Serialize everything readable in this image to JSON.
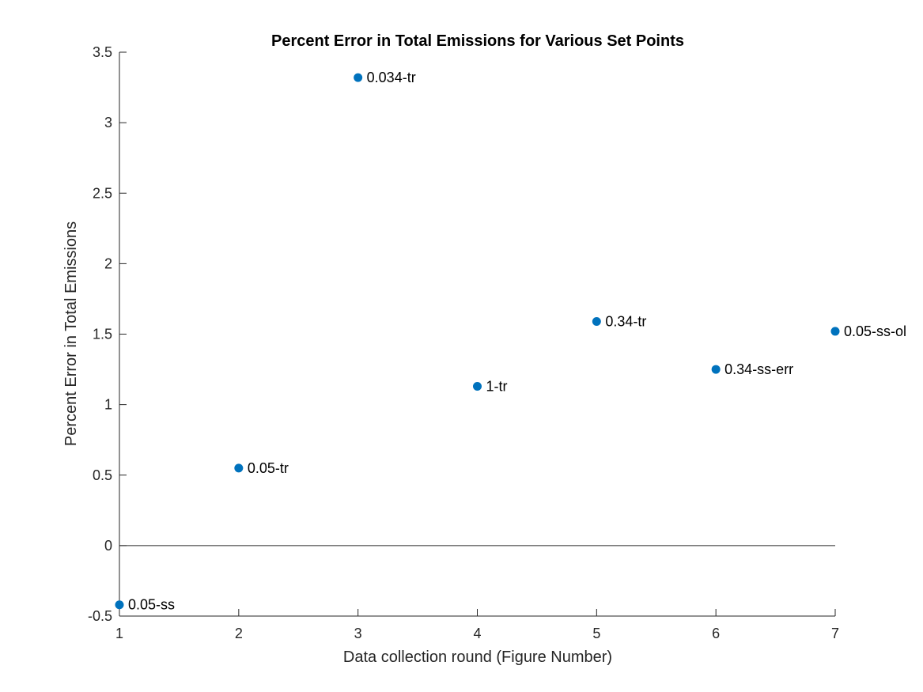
{
  "chart_data": {
    "type": "scatter",
    "title": "Percent Error in Total Emissions for Various Set Points",
    "xlabel": "Data collection round (Figure Number)",
    "ylabel": "Percent Error in Total Emissions",
    "xlim": [
      1,
      7
    ],
    "ylim": [
      -0.5,
      3.5
    ],
    "xticks": [
      "1",
      "2",
      "3",
      "4",
      "5",
      "6",
      "7"
    ],
    "yticks": [
      "-0.5",
      "0",
      "0.5",
      "1",
      "1.5",
      "2",
      "2.5",
      "3",
      "3.5"
    ],
    "grid": false,
    "zero_line": true,
    "marker_color": "#0072BD",
    "points": [
      {
        "x": 1,
        "y": -0.42,
        "label": "0.05-ss"
      },
      {
        "x": 2,
        "y": 0.55,
        "label": "0.05-tr"
      },
      {
        "x": 3,
        "y": 3.32,
        "label": "0.034-tr"
      },
      {
        "x": 4,
        "y": 1.13,
        "label": "1-tr"
      },
      {
        "x": 5,
        "y": 1.59,
        "label": "0.34-tr"
      },
      {
        "x": 6,
        "y": 1.25,
        "label": "0.34-ss-err"
      },
      {
        "x": 7,
        "y": 1.52,
        "label": "0.05-ss-ol"
      }
    ]
  }
}
